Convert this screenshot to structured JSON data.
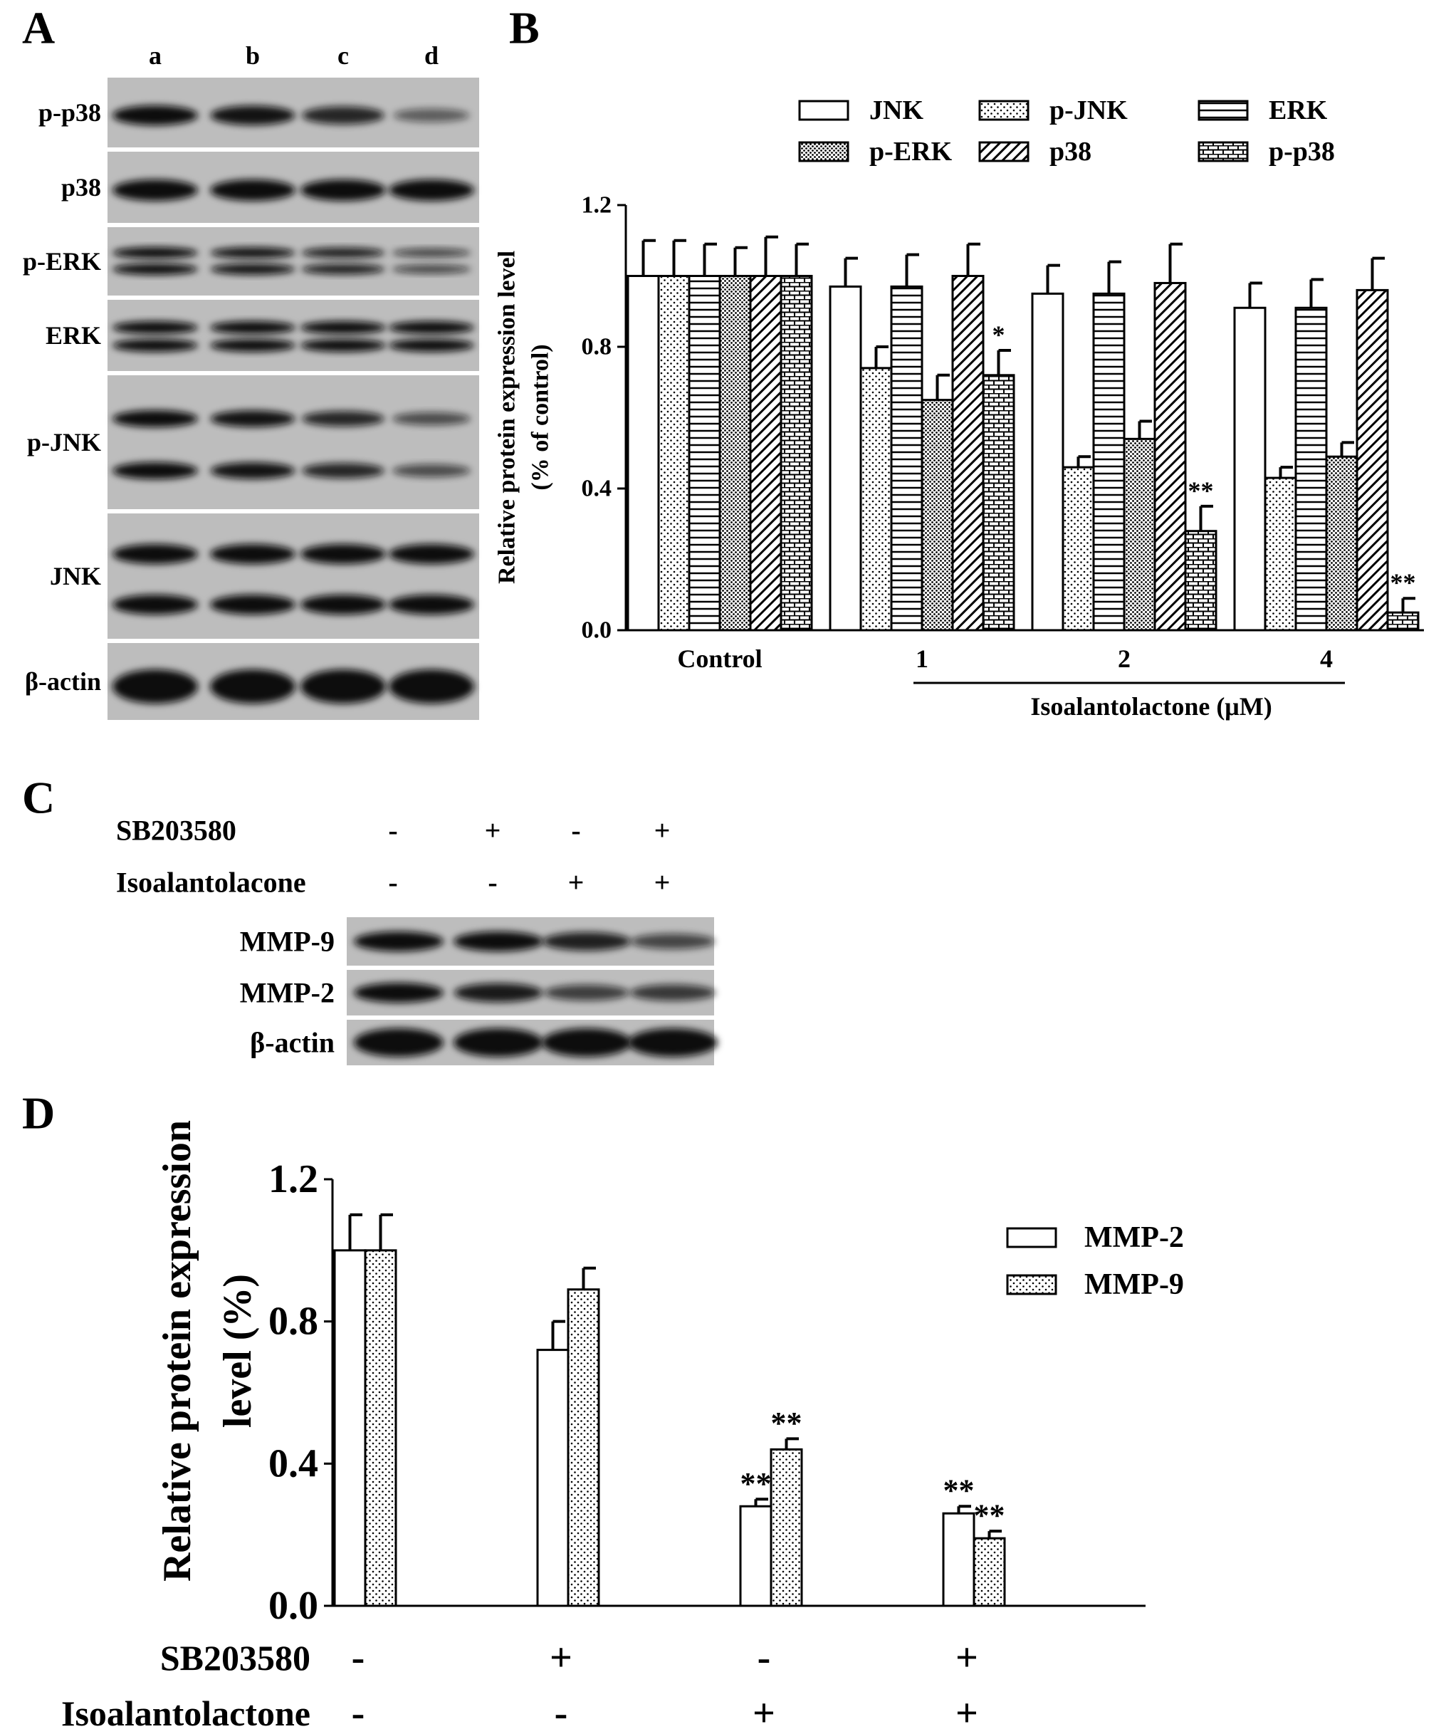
{
  "panel_labels": [
    "A",
    "B",
    "C",
    "D"
  ],
  "blot_a": {
    "lanes": [
      "a",
      "b",
      "c",
      "d"
    ],
    "rows": [
      "p-p38",
      "p38",
      "p-ERK",
      "ERK",
      "p-JNK",
      "JNK",
      "β-actin"
    ]
  },
  "blot_c": {
    "conditions": [
      {
        "name": "SB203580",
        "values": [
          "-",
          "+",
          "-",
          "+"
        ]
      },
      {
        "name": "Isoalantolacone",
        "values": [
          "-",
          "-",
          "+",
          "+"
        ]
      }
    ],
    "rows": [
      "MMP-9",
      "MMP-2",
      "β-actin"
    ]
  },
  "chart_data": [
    {
      "type": "bar",
      "categories": [
        "Control",
        "1",
        "2",
        "4"
      ],
      "xlabel": "Isoalantolactone (μM)",
      "ylabel": [
        "Relative protein expression level",
        "(% of control)"
      ],
      "ylim": [
        0,
        1.2
      ],
      "yticks": [
        {
          "value": 0,
          "label": "0.0"
        },
        0.4,
        0.8,
        1.2
      ],
      "series": [
        {
          "name": "JNK",
          "color": "#000000",
          "pattern": "none",
          "values": [
            1.0,
            0.97,
            0.95,
            0.91
          ],
          "errors": [
            0.1,
            0.08,
            0.08,
            0.07
          ]
        },
        {
          "name": "p-JNK",
          "color": "#000000",
          "pattern": "dots",
          "values": [
            1.0,
            0.74,
            0.46,
            0.43
          ],
          "errors": [
            0.1,
            0.06,
            0.03,
            0.03
          ]
        },
        {
          "name": "ERK",
          "color": "#000000",
          "pattern": "hlines",
          "values": [
            1.0,
            0.97,
            0.95,
            0.91
          ],
          "errors": [
            0.09,
            0.09,
            0.09,
            0.08
          ]
        },
        {
          "name": "p-ERK",
          "color": "#000000",
          "pattern": "dense-dots",
          "values": [
            1.0,
            0.65,
            0.54,
            0.49
          ],
          "errors": [
            0.08,
            0.07,
            0.05,
            0.04
          ]
        },
        {
          "name": "p38",
          "color": "#000000",
          "pattern": "diagonal",
          "values": [
            1.0,
            1.0,
            0.98,
            0.96
          ],
          "errors": [
            0.11,
            0.09,
            0.11,
            0.09
          ]
        },
        {
          "name": "p-p38",
          "color": "#000000",
          "pattern": "bricks",
          "values": [
            1.0,
            0.72,
            0.28,
            0.05
          ],
          "errors": [
            0.09,
            0.07,
            0.07,
            0.04
          ],
          "significance": [
            null,
            "*",
            "**",
            "**"
          ]
        }
      ]
    },
    {
      "type": "bar",
      "conditions": [
        {
          "name": "SB203580",
          "values": [
            "-",
            "+",
            "-",
            "+"
          ]
        },
        {
          "name": "Isoalantolactone",
          "values": [
            "-",
            "-",
            "+",
            "+"
          ]
        }
      ],
      "ylabel": [
        "Relative protein expression",
        "level (%)"
      ],
      "ylim": [
        0,
        1.2
      ],
      "yticks": [
        {
          "value": 0,
          "label": "0.0"
        },
        0.4,
        0.8,
        1.2
      ],
      "series": [
        {
          "name": "MMP-2",
          "color": "#000000",
          "pattern": "none",
          "values": [
            1.0,
            0.72,
            0.28,
            0.26
          ],
          "errors": [
            0.1,
            0.08,
            0.02,
            0.02
          ],
          "significance": [
            null,
            null,
            "**",
            "**"
          ]
        },
        {
          "name": "MMP-9",
          "color": "#000000",
          "pattern": "dots",
          "values": [
            1.0,
            0.89,
            0.44,
            0.19
          ],
          "errors": [
            0.1,
            0.06,
            0.03,
            0.02
          ],
          "significance": [
            null,
            null,
            "**",
            "**"
          ]
        }
      ]
    }
  ]
}
